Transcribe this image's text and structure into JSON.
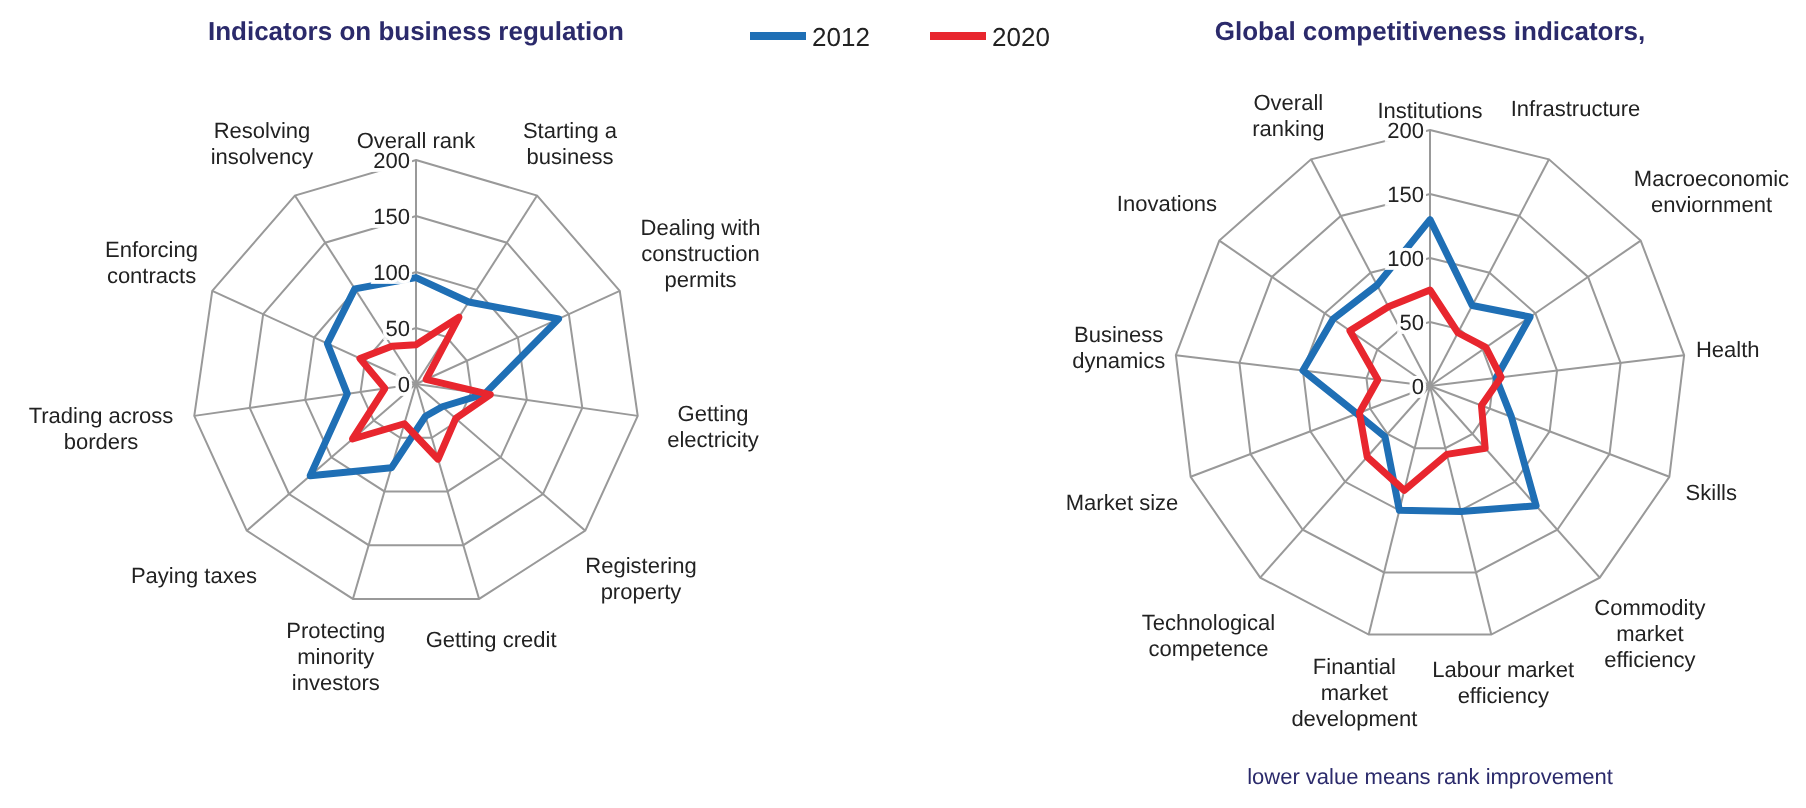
{
  "chart_data": [
    {
      "type": "radar",
      "title": "Indicators on business regulation",
      "categories": [
        "Overall rank",
        "Starting a business",
        "Dealing with construction permits",
        "Getting electricity",
        "Registering property",
        "Getting credit",
        "Protecting minority investors",
        "Paying taxes",
        "Trading across borders",
        "Enforcing contracts",
        "Resolving insolvency"
      ],
      "series": [
        {
          "name": "2012",
          "color": "#1f6fb5",
          "values": [
            95,
            87,
            140,
            62,
            31,
            30,
            78,
            125,
            62,
            87,
            101
          ]
        },
        {
          "name": "2020",
          "color": "#e8262e",
          "values": [
            35,
            71,
            10,
            67,
            47,
            70,
            37,
            75,
            28,
            55,
            40
          ]
        }
      ],
      "ylim": [
        0,
        200
      ],
      "yticks": [
        0,
        50,
        100,
        150,
        200
      ],
      "legend": "top right"
    },
    {
      "type": "radar",
      "title": "Global competitiveness indicators,",
      "categories": [
        "Institutions",
        "Infrastructure",
        "Macroeconomic enviornment",
        "Health",
        "Skills",
        "Commodity market efficiency",
        "Labour market efficiency",
        "Finantial market development",
        "Technological competence",
        "Market size",
        "Business dynamics",
        "Inovations",
        "Overall ranking"
      ],
      "series": [
        {
          "color": "#1f6fb5",
          "values": [
            130,
            71,
            95,
            52,
            68,
            125,
            101,
            100,
            53,
            61,
            100,
            92,
            89
          ]
        },
        {
          "color": "#e8262e",
          "values": [
            75,
            47,
            53,
            56,
            43,
            65,
            55,
            84,
            74,
            59,
            41,
            76,
            70
          ]
        }
      ],
      "ylim": [
        0,
        200
      ],
      "yticks": [
        0,
        50,
        100,
        150,
        200
      ],
      "annotations": [
        "lower value means rank improvement"
      ]
    }
  ]
}
